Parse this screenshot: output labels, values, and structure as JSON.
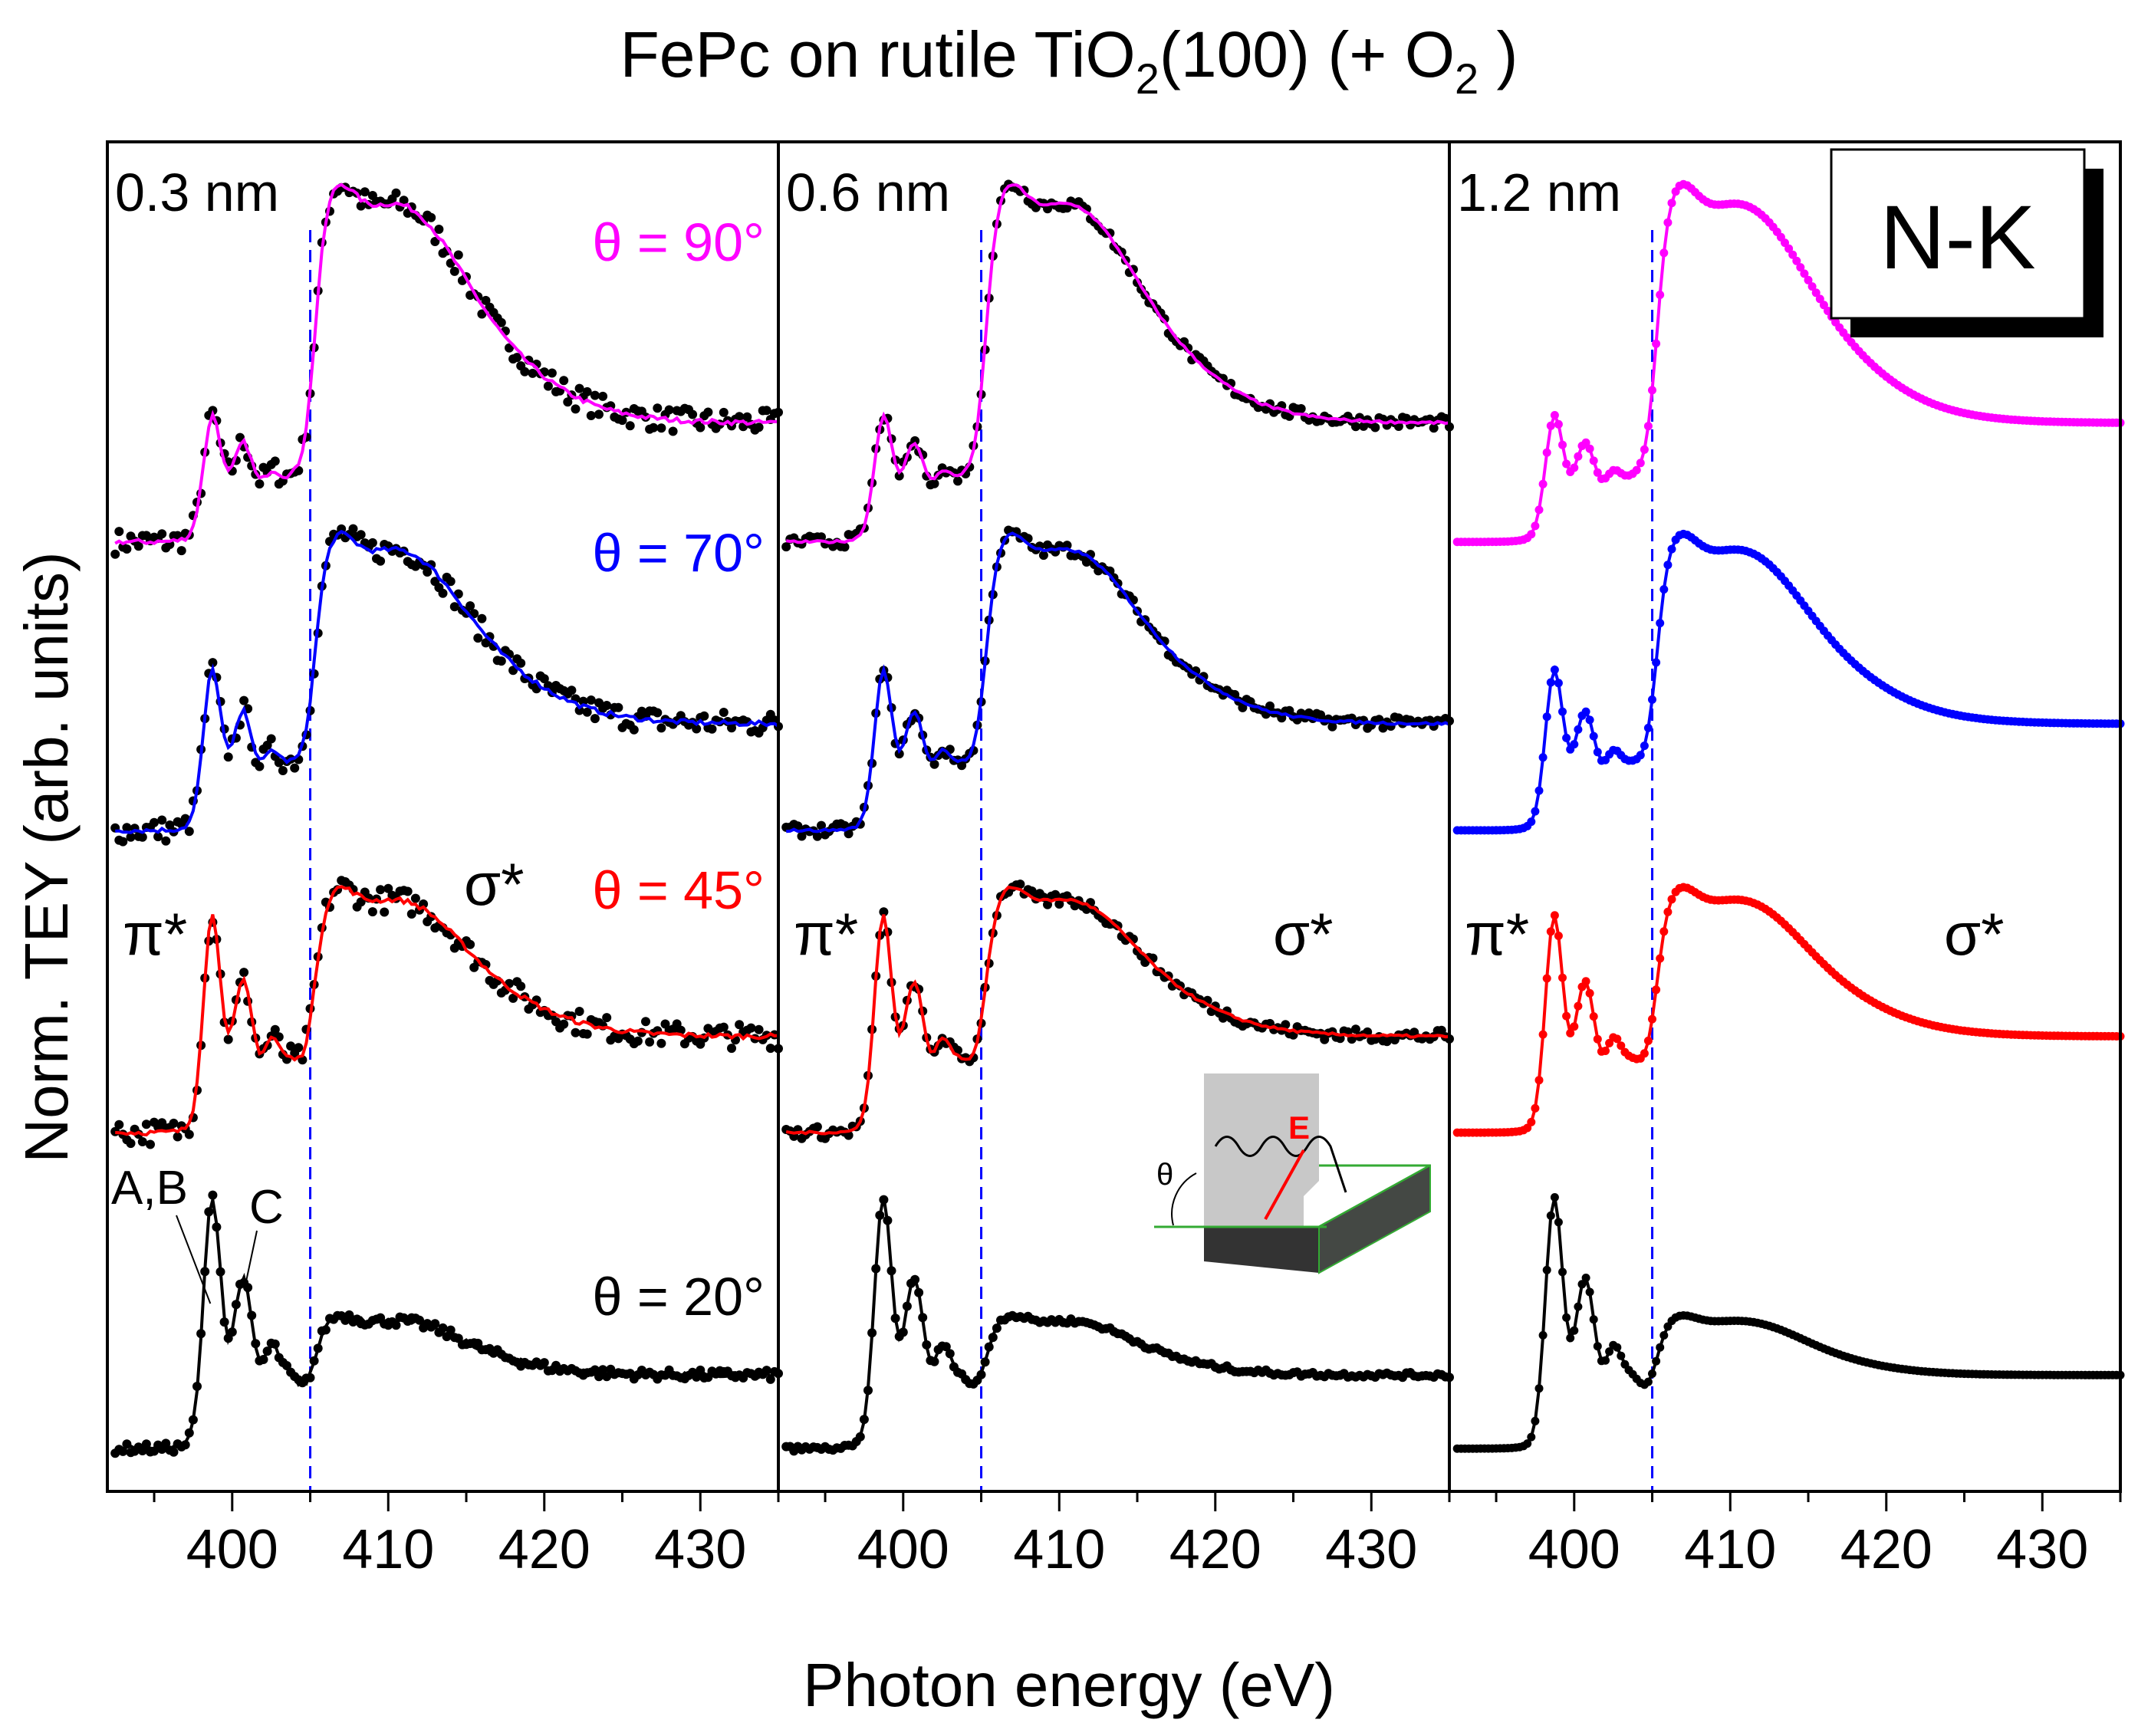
{
  "chart_data": {
    "type": "line",
    "title": {
      "main": "FePc on rutile TiO",
      "sub2": "2",
      "mid": "(100) (+ O",
      "sub3": "2",
      "end": " )"
    },
    "xlabel": "Photon energy (eV)",
    "ylabel": "Norm. TEY (arb. units)",
    "xlim": [
      392,
      435
    ],
    "xticks": [
      400,
      410,
      420,
      430
    ],
    "xtick_labels": [
      "400",
      "410",
      "420",
      "430"
    ],
    "edge_marker_ev": 405,
    "edge_label": "N-K",
    "panels": [
      {
        "label": "0.3 nm",
        "noise": 0.09,
        "with_points": true,
        "show_theta_labels": true,
        "show_peak_labels": true,
        "show_pi_sigma": true,
        "show_inset": false
      },
      {
        "label": "0.6 nm",
        "noise": 0.045,
        "with_points": true,
        "show_theta_labels": false,
        "show_peak_labels": false,
        "show_pi_sigma": true,
        "show_inset": true
      },
      {
        "label": "1.2 nm",
        "noise": 0.01,
        "with_points": false,
        "show_theta_labels": false,
        "show_peak_labels": false,
        "show_pi_sigma": true,
        "show_inset": false
      }
    ],
    "series": [
      {
        "name": "θ = 90°",
        "color": "#ff00ff",
        "offset": 6.6,
        "pi_scale": 0.45,
        "sigma_scale": 1.55
      },
      {
        "name": "θ = 70°",
        "color": "#0000ff",
        "offset": 4.5,
        "pi_scale": 0.6,
        "sigma_scale": 1.25
      },
      {
        "name": "θ = 45°",
        "color": "#ff0000",
        "offset": 2.3,
        "pi_scale": 0.85,
        "sigma_scale": 1.0
      },
      {
        "name": "θ = 20°",
        "color": "#000000",
        "offset": 0.0,
        "pi_scale": 1.0,
        "sigma_scale": 0.45
      }
    ],
    "y_range": [
      -0.2,
      9.4
    ],
    "annotations": {
      "pi_star": "π*",
      "sigma_star": "σ*",
      "peak_ab": "A,B",
      "peak_c": "C",
      "inset_theta": "θ",
      "inset_e": "E"
    }
  }
}
